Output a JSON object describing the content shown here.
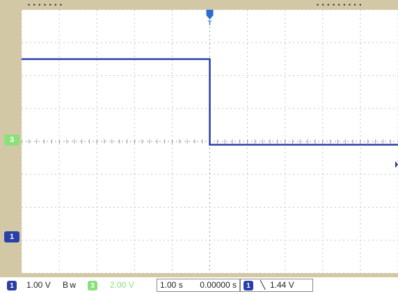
{
  "channels": {
    "ch1": {
      "number": "1",
      "scale": "1.00 V",
      "bw_label": "B w",
      "color": "#2a3fa8"
    },
    "ch3": {
      "number": "3",
      "scale": "2.00 V",
      "color": "#8be07a"
    }
  },
  "timebase": {
    "scale": "1.00 s",
    "delay": "0.00000 s"
  },
  "trigger": {
    "source": "1",
    "edge_symbol": "╲",
    "level": "1.44 V",
    "marker_symbol": "T"
  },
  "top_edge_text": {
    "left": "• • •   • • • •",
    "right": "• • •   • • • • • •"
  },
  "waveforms": {
    "ch3_level_div": 4.3,
    "ch1_high_div": 2.5,
    "ch1_low_div": -0.1,
    "ch1_step_time_div": 0
  }
}
